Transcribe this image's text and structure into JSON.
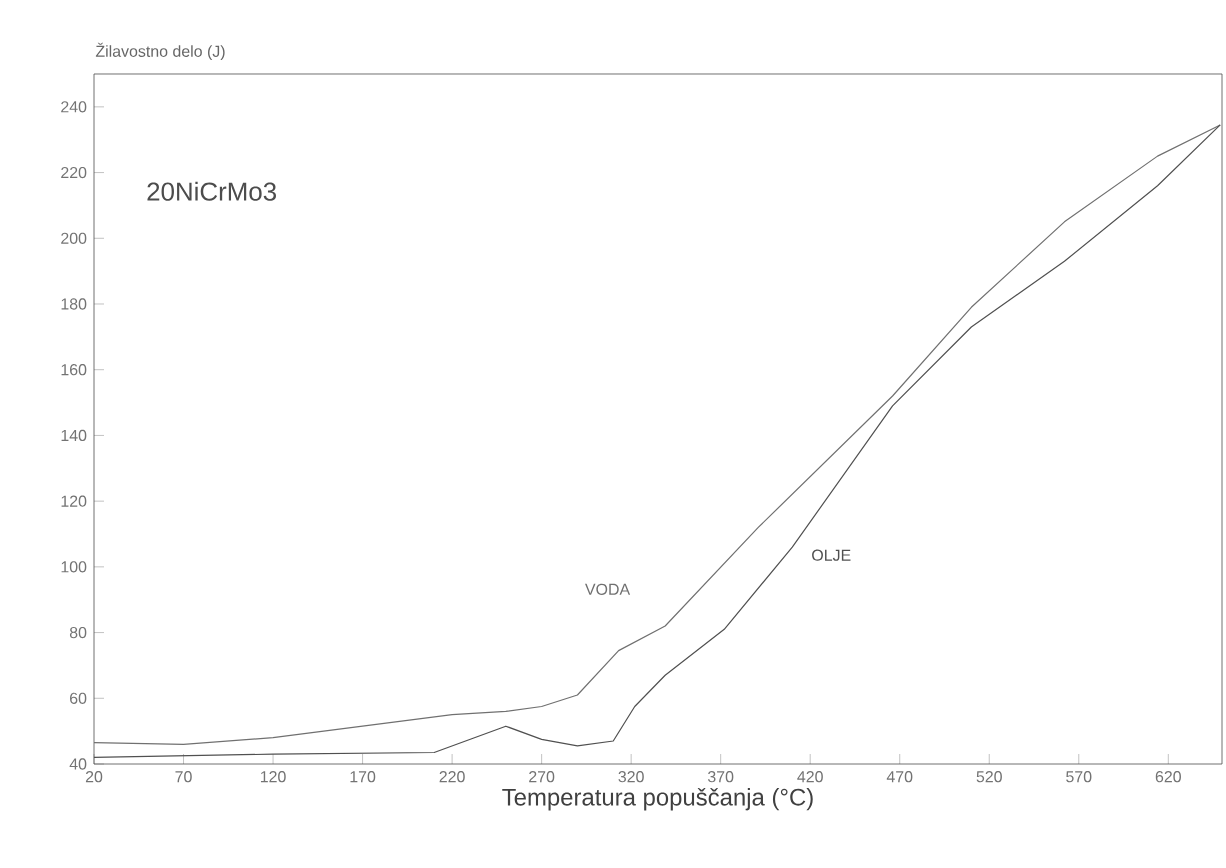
{
  "chart_data": {
    "type": "line",
    "xlabel": "Temperatura popuščanja (°C)",
    "ylabel": "Žilavostno delo (J)",
    "annotations": [
      "20NiCrMo3"
    ],
    "x": [
      20,
      70,
      120,
      170,
      220,
      250,
      270,
      290,
      313,
      339,
      391,
      466,
      510,
      562,
      614,
      649
    ],
    "series": [
      {
        "name": "VODA",
        "color": "#707070",
        "values": [
          46.5,
          46,
          48,
          51.5,
          55,
          56,
          57.5,
          61,
          74.5,
          82,
          112,
          152,
          179,
          205,
          225,
          234.5
        ]
      },
      {
        "name": "OLJE",
        "color": "#505050",
        "x": [
          20,
          120,
          210,
          250,
          270,
          290,
          310,
          322,
          339,
          372,
          410,
          466,
          510,
          562,
          614,
          649
        ],
        "values": [
          42,
          43,
          43.5,
          51.5,
          47.5,
          45.5,
          47,
          57.5,
          67,
          81,
          106,
          149,
          173,
          193,
          216,
          234.5
        ]
      }
    ],
    "xlim": [
      20,
      650
    ],
    "ylim": [
      40,
      250
    ],
    "xticks": [
      20,
      70,
      120,
      170,
      220,
      270,
      320,
      370,
      420,
      470,
      520,
      570,
      620
    ],
    "yticks": [
      40,
      60,
      80,
      100,
      120,
      140,
      160,
      180,
      200,
      220,
      240
    ],
    "grid": false,
    "legend": false,
    "marker": "none",
    "line_style": "solid"
  }
}
